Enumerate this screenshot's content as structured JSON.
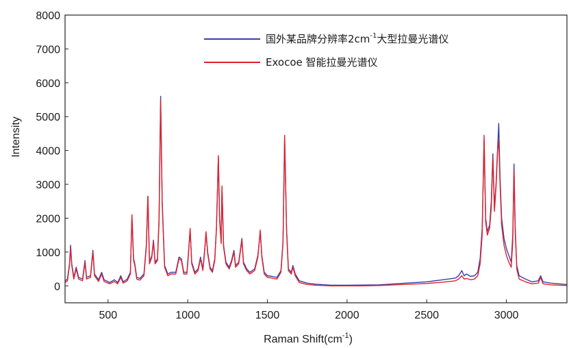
{
  "chart_data": {
    "type": "line",
    "xlabel": "Raman Shift(cm",
    "xlabel_sup": "-1",
    "xlabel_suffix": ")",
    "ylabel": "Intensity",
    "xlim": [
      230,
      3380
    ],
    "ylim": [
      -500,
      8000
    ],
    "xticks": [
      500,
      1000,
      1500,
      2000,
      2500,
      3000
    ],
    "yticks": [
      0,
      1000,
      2000,
      3000,
      4000,
      5000,
      6000,
      7000,
      8000
    ],
    "legend_position": "top-right",
    "grid": false,
    "series": [
      {
        "name": "国外某品牌分辨率2cm",
        "name_sup": "-1",
        "name_suffix": "大型拉曼光谱仪",
        "color": "#3a3ea8",
        "points": [
          [
            230,
            150
          ],
          [
            245,
            200
          ],
          [
            258,
            650
          ],
          [
            265,
            1200
          ],
          [
            272,
            650
          ],
          [
            285,
            250
          ],
          [
            300,
            550
          ],
          [
            315,
            250
          ],
          [
            340,
            200
          ],
          [
            355,
            750
          ],
          [
            365,
            250
          ],
          [
            390,
            300
          ],
          [
            405,
            1050
          ],
          [
            415,
            350
          ],
          [
            440,
            180
          ],
          [
            460,
            400
          ],
          [
            475,
            180
          ],
          [
            510,
            100
          ],
          [
            540,
            180
          ],
          [
            560,
            100
          ],
          [
            580,
            300
          ],
          [
            595,
            120
          ],
          [
            620,
            200
          ],
          [
            640,
            400
          ],
          [
            650,
            2050
          ],
          [
            660,
            800
          ],
          [
            668,
            650
          ],
          [
            680,
            250
          ],
          [
            700,
            220
          ],
          [
            725,
            350
          ],
          [
            740,
            1200
          ],
          [
            750,
            2650
          ],
          [
            760,
            700
          ],
          [
            775,
            900
          ],
          [
            785,
            1350
          ],
          [
            795,
            700
          ],
          [
            810,
            800
          ],
          [
            820,
            2000
          ],
          [
            830,
            5600
          ],
          [
            840,
            2500
          ],
          [
            855,
            600
          ],
          [
            875,
            350
          ],
          [
            895,
            400
          ],
          [
            925,
            400
          ],
          [
            945,
            850
          ],
          [
            960,
            800
          ],
          [
            975,
            400
          ],
          [
            995,
            400
          ],
          [
            1005,
            1000
          ],
          [
            1015,
            1650
          ],
          [
            1025,
            700
          ],
          [
            1045,
            400
          ],
          [
            1065,
            500
          ],
          [
            1080,
            850
          ],
          [
            1095,
            500
          ],
          [
            1105,
            1000
          ],
          [
            1115,
            1550
          ],
          [
            1125,
            1000
          ],
          [
            1140,
            550
          ],
          [
            1155,
            450
          ],
          [
            1170,
            800
          ],
          [
            1180,
            1700
          ],
          [
            1192,
            3800
          ],
          [
            1200,
            2000
          ],
          [
            1210,
            1300
          ],
          [
            1215,
            2900
          ],
          [
            1225,
            1200
          ],
          [
            1240,
            700
          ],
          [
            1260,
            550
          ],
          [
            1275,
            750
          ],
          [
            1290,
            1050
          ],
          [
            1300,
            600
          ],
          [
            1320,
            700
          ],
          [
            1340,
            1400
          ],
          [
            1350,
            700
          ],
          [
            1370,
            500
          ],
          [
            1390,
            400
          ],
          [
            1420,
            500
          ],
          [
            1440,
            900
          ],
          [
            1455,
            1600
          ],
          [
            1465,
            900
          ],
          [
            1480,
            400
          ],
          [
            1500,
            300
          ],
          [
            1530,
            280
          ],
          [
            1560,
            250
          ],
          [
            1585,
            450
          ],
          [
            1598,
            1300
          ],
          [
            1608,
            4400
          ],
          [
            1620,
            1700
          ],
          [
            1632,
            500
          ],
          [
            1650,
            400
          ],
          [
            1660,
            600
          ],
          [
            1675,
            350
          ],
          [
            1700,
            150
          ],
          [
            1750,
            80
          ],
          [
            1800,
            50
          ],
          [
            1900,
            20
          ],
          [
            2000,
            20
          ],
          [
            2100,
            25
          ],
          [
            2200,
            30
          ],
          [
            2300,
            60
          ],
          [
            2400,
            90
          ],
          [
            2500,
            120
          ],
          [
            2600,
            180
          ],
          [
            2680,
            230
          ],
          [
            2700,
            300
          ],
          [
            2720,
            450
          ],
          [
            2735,
            300
          ],
          [
            2750,
            350
          ],
          [
            2775,
            280
          ],
          [
            2800,
            300
          ],
          [
            2820,
            400
          ],
          [
            2835,
            800
          ],
          [
            2848,
            1700
          ],
          [
            2860,
            4300
          ],
          [
            2870,
            2000
          ],
          [
            2880,
            1600
          ],
          [
            2895,
            1800
          ],
          [
            2905,
            2500
          ],
          [
            2915,
            3900
          ],
          [
            2925,
            2300
          ],
          [
            2935,
            3000
          ],
          [
            2945,
            4100
          ],
          [
            2952,
            4800
          ],
          [
            2960,
            3200
          ],
          [
            2970,
            2000
          ],
          [
            2985,
            1400
          ],
          [
            3000,
            1100
          ],
          [
            3015,
            900
          ],
          [
            3030,
            700
          ],
          [
            3040,
            1500
          ],
          [
            3048,
            3600
          ],
          [
            3055,
            1600
          ],
          [
            3065,
            600
          ],
          [
            3080,
            300
          ],
          [
            3120,
            200
          ],
          [
            3160,
            120
          ],
          [
            3200,
            150
          ],
          [
            3215,
            300
          ],
          [
            3230,
            120
          ],
          [
            3280,
            80
          ],
          [
            3330,
            60
          ],
          [
            3380,
            40
          ]
        ]
      },
      {
        "name": "Exocoe 智能拉曼光谱仪",
        "color": "#e0202a",
        "points": [
          [
            230,
            100
          ],
          [
            245,
            150
          ],
          [
            258,
            600
          ],
          [
            265,
            1100
          ],
          [
            272,
            600
          ],
          [
            285,
            200
          ],
          [
            300,
            500
          ],
          [
            315,
            200
          ],
          [
            340,
            150
          ],
          [
            355,
            700
          ],
          [
            365,
            200
          ],
          [
            390,
            250
          ],
          [
            405,
            1000
          ],
          [
            415,
            300
          ],
          [
            440,
            130
          ],
          [
            460,
            350
          ],
          [
            475,
            130
          ],
          [
            510,
            60
          ],
          [
            540,
            130
          ],
          [
            560,
            60
          ],
          [
            580,
            250
          ],
          [
            595,
            80
          ],
          [
            620,
            150
          ],
          [
            640,
            350
          ],
          [
            650,
            2100
          ],
          [
            660,
            750
          ],
          [
            668,
            600
          ],
          [
            680,
            200
          ],
          [
            700,
            170
          ],
          [
            725,
            300
          ],
          [
            740,
            1150
          ],
          [
            750,
            2650
          ],
          [
            760,
            650
          ],
          [
            775,
            850
          ],
          [
            785,
            1300
          ],
          [
            795,
            650
          ],
          [
            810,
            750
          ],
          [
            820,
            1900
          ],
          [
            830,
            5500
          ],
          [
            840,
            2400
          ],
          [
            855,
            550
          ],
          [
            875,
            300
          ],
          [
            895,
            350
          ],
          [
            925,
            350
          ],
          [
            945,
            800
          ],
          [
            960,
            750
          ],
          [
            975,
            350
          ],
          [
            995,
            350
          ],
          [
            1005,
            950
          ],
          [
            1015,
            1700
          ],
          [
            1025,
            650
          ],
          [
            1045,
            350
          ],
          [
            1065,
            450
          ],
          [
            1080,
            800
          ],
          [
            1095,
            450
          ],
          [
            1105,
            950
          ],
          [
            1115,
            1600
          ],
          [
            1125,
            950
          ],
          [
            1140,
            500
          ],
          [
            1155,
            400
          ],
          [
            1170,
            750
          ],
          [
            1180,
            1700
          ],
          [
            1192,
            3850
          ],
          [
            1200,
            1950
          ],
          [
            1210,
            1250
          ],
          [
            1215,
            2950
          ],
          [
            1225,
            1150
          ],
          [
            1240,
            650
          ],
          [
            1260,
            500
          ],
          [
            1275,
            700
          ],
          [
            1290,
            1000
          ],
          [
            1300,
            550
          ],
          [
            1320,
            650
          ],
          [
            1340,
            1350
          ],
          [
            1350,
            650
          ],
          [
            1370,
            450
          ],
          [
            1390,
            350
          ],
          [
            1420,
            450
          ],
          [
            1440,
            850
          ],
          [
            1455,
            1650
          ],
          [
            1465,
            850
          ],
          [
            1480,
            350
          ],
          [
            1500,
            250
          ],
          [
            1530,
            230
          ],
          [
            1560,
            200
          ],
          [
            1585,
            400
          ],
          [
            1598,
            1250
          ],
          [
            1608,
            4450
          ],
          [
            1620,
            1650
          ],
          [
            1632,
            450
          ],
          [
            1650,
            350
          ],
          [
            1660,
            550
          ],
          [
            1675,
            300
          ],
          [
            1700,
            100
          ],
          [
            1750,
            40
          ],
          [
            1800,
            20
          ],
          [
            1900,
            0
          ],
          [
            2000,
            0
          ],
          [
            2100,
            0
          ],
          [
            2200,
            10
          ],
          [
            2300,
            30
          ],
          [
            2400,
            50
          ],
          [
            2500,
            70
          ],
          [
            2600,
            110
          ],
          [
            2680,
            150
          ],
          [
            2700,
            200
          ],
          [
            2720,
            300
          ],
          [
            2735,
            200
          ],
          [
            2750,
            220
          ],
          [
            2775,
            180
          ],
          [
            2800,
            200
          ],
          [
            2820,
            300
          ],
          [
            2835,
            650
          ],
          [
            2848,
            1500
          ],
          [
            2860,
            4450
          ],
          [
            2870,
            1900
          ],
          [
            2880,
            1500
          ],
          [
            2895,
            1700
          ],
          [
            2905,
            2300
          ],
          [
            2915,
            3800
          ],
          [
            2925,
            2200
          ],
          [
            2935,
            2900
          ],
          [
            2945,
            4000
          ],
          [
            2952,
            4300
          ],
          [
            2960,
            3000
          ],
          [
            2970,
            1800
          ],
          [
            2985,
            1200
          ],
          [
            3000,
            900
          ],
          [
            3015,
            700
          ],
          [
            3030,
            550
          ],
          [
            3040,
            1300
          ],
          [
            3048,
            3400
          ],
          [
            3055,
            1800
          ],
          [
            3065,
            500
          ],
          [
            3080,
            200
          ],
          [
            3120,
            120
          ],
          [
            3160,
            60
          ],
          [
            3200,
            80
          ],
          [
            3215,
            250
          ],
          [
            3230,
            60
          ],
          [
            3280,
            30
          ],
          [
            3330,
            20
          ],
          [
            3380,
            10
          ]
        ]
      }
    ]
  }
}
